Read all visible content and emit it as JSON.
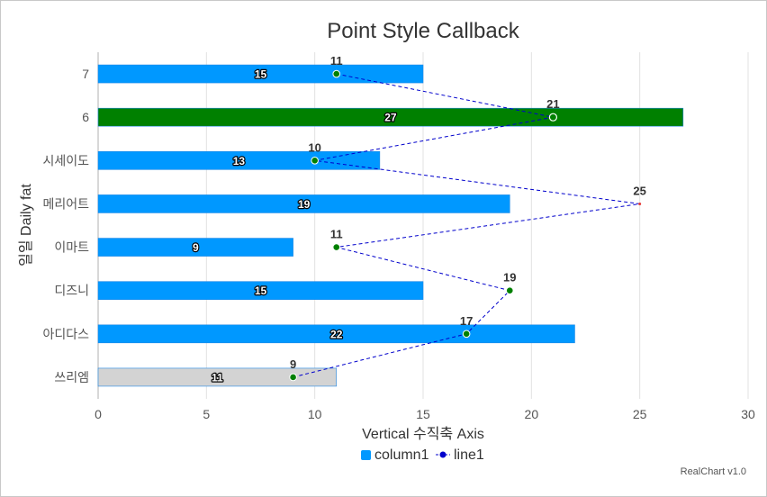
{
  "chart_data": {
    "type": "bar",
    "orientation": "horizontal",
    "title": "Point Style Callback",
    "xlabel": "Vertical 수직축 Axis",
    "ylabel": "일일 Daily fat",
    "categories": [
      "쓰리엠",
      "아디다스",
      "디즈니",
      "이마트",
      "메리어트",
      "시세이도",
      "6",
      "7"
    ],
    "xlim": [
      0,
      30
    ],
    "xticks": [
      0,
      5,
      10,
      15,
      20,
      25,
      30
    ],
    "grid": true,
    "legend_position": "bottom",
    "series": [
      {
        "name": "column1",
        "type": "bar",
        "color": "#0098ff",
        "values": [
          11,
          22,
          15,
          9,
          19,
          13,
          27,
          15
        ],
        "point_colors": [
          "#d3d3d3",
          "#0098ff",
          "#0098ff",
          "#0098ff",
          "#0098ff",
          "#0098ff",
          "#008000",
          "#0098ff"
        ]
      },
      {
        "name": "line1",
        "type": "line",
        "color": "#0000cc",
        "marker_color": "#008000",
        "values": [
          9,
          17,
          19,
          11,
          25,
          10,
          21,
          11
        ]
      }
    ]
  },
  "credit": "RealChart v1.0"
}
